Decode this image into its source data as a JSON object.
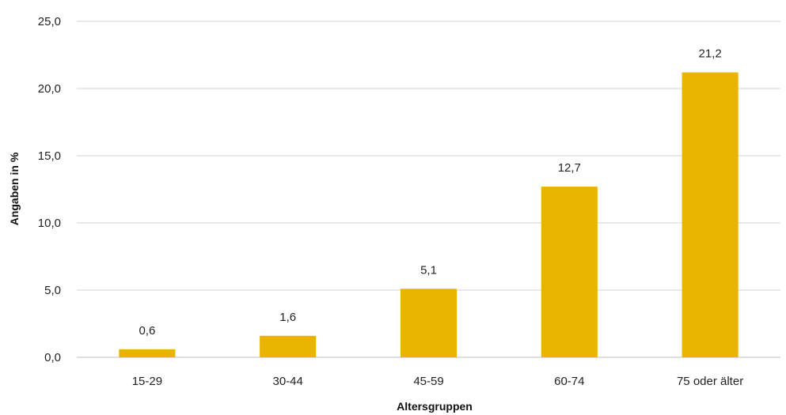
{
  "chart_data": {
    "type": "bar",
    "title": "",
    "xlabel": "Altersgruppen",
    "ylabel": "Angaben in %",
    "categories": [
      "15-29",
      "30-44",
      "45-59",
      "60-74",
      "75 oder älter"
    ],
    "values": [
      0.6,
      1.6,
      5.1,
      12.7,
      21.2
    ],
    "value_labels": [
      "0,6",
      "1,6",
      "5,1",
      "12,7",
      "21,2"
    ],
    "ylim": [
      0,
      25
    ],
    "yticks": [
      0,
      5,
      10,
      15,
      20,
      25
    ],
    "ytick_labels": [
      "0,0",
      "5,0",
      "10,0",
      "15,0",
      "20,0",
      "25,0"
    ],
    "grid": true,
    "legend": "none",
    "colors": {
      "bar": "#E8B400",
      "grid": "#D0D0D0",
      "baseline": "#BFBFBF"
    }
  }
}
